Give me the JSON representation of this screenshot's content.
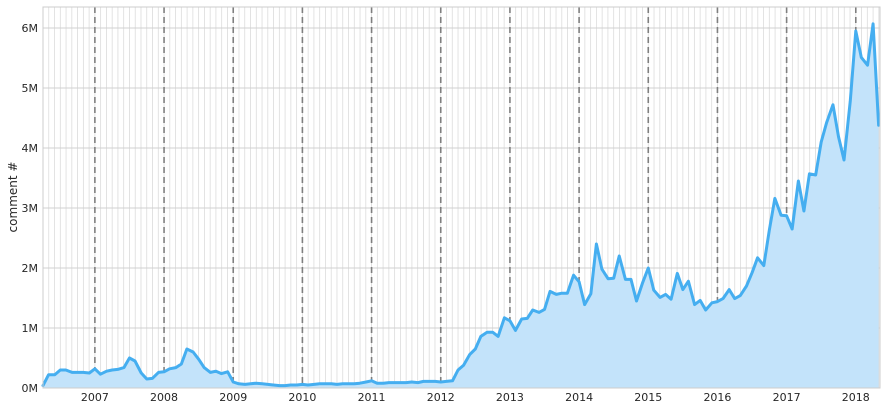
{
  "chart_data": {
    "type": "area",
    "title": "",
    "xlabel": "",
    "ylabel": "comment #",
    "xlim": [
      2006.25,
      2018.35
    ],
    "ylim": [
      0,
      6350000
    ],
    "grid": true,
    "minor_grid": "monthly",
    "year_markers": [
      2007,
      2008,
      2009,
      2010,
      2011,
      2012,
      2013,
      2014,
      2015,
      2016,
      2017,
      2018
    ],
    "x_ticks": [
      {
        "value": 2007,
        "label": "2007"
      },
      {
        "value": 2008,
        "label": "2008"
      },
      {
        "value": 2009,
        "label": "2009"
      },
      {
        "value": 2010,
        "label": "2010"
      },
      {
        "value": 2011,
        "label": "2011"
      },
      {
        "value": 2012,
        "label": "2012"
      },
      {
        "value": 2013,
        "label": "2013"
      },
      {
        "value": 2014,
        "label": "2014"
      },
      {
        "value": 2015,
        "label": "2015"
      },
      {
        "value": 2016,
        "label": "2016"
      },
      {
        "value": 2017,
        "label": "2017"
      },
      {
        "value": 2018,
        "label": "2018"
      }
    ],
    "y_ticks": [
      {
        "value": 0,
        "label": "0M"
      },
      {
        "value": 1000000,
        "label": "1M"
      },
      {
        "value": 2000000,
        "label": "2M"
      },
      {
        "value": 3000000,
        "label": "3M"
      },
      {
        "value": 4000000,
        "label": "4M"
      },
      {
        "value": 5000000,
        "label": "5M"
      },
      {
        "value": 6000000,
        "label": "6M"
      }
    ],
    "colors": {
      "line": "#45aef0",
      "fill": "#c3e3fa",
      "grid": "#d0d0d0",
      "year_marker": "#7f7f7f"
    },
    "series": [
      {
        "x": [
          2006.25,
          2006.33,
          2006.42,
          2006.5,
          2006.58,
          2006.67,
          2006.75,
          2006.83,
          2006.92,
          2007.0,
          2007.08,
          2007.17,
          2007.25,
          2007.33,
          2007.42,
          2007.5,
          2007.58,
          2007.67,
          2007.75,
          2007.83,
          2007.92,
          2008.0,
          2008.08,
          2008.17,
          2008.25,
          2008.33,
          2008.42,
          2008.5,
          2008.58,
          2008.67,
          2008.75,
          2008.83,
          2008.92,
          2009.0,
          2009.08,
          2009.17,
          2009.25,
          2009.33,
          2009.42,
          2009.5,
          2009.58,
          2009.67,
          2009.75,
          2009.83,
          2009.92,
          2010.0,
          2010.08,
          2010.17,
          2010.25,
          2010.33,
          2010.42,
          2010.5,
          2010.58,
          2010.67,
          2010.75,
          2010.83,
          2010.92,
          2011.0,
          2011.08,
          2011.17,
          2011.25,
          2011.33,
          2011.42,
          2011.5,
          2011.58,
          2011.67,
          2011.75,
          2011.83,
          2011.92,
          2012.0,
          2012.08,
          2012.17,
          2012.25,
          2012.33,
          2012.42,
          2012.5,
          2012.58,
          2012.67,
          2012.75,
          2012.83,
          2012.92,
          2013.0,
          2013.08,
          2013.17,
          2013.25,
          2013.33,
          2013.42,
          2013.5,
          2013.58,
          2013.67,
          2013.75,
          2013.83,
          2013.92,
          2014.0,
          2014.08,
          2014.17,
          2014.25,
          2014.33,
          2014.42,
          2014.5,
          2014.58,
          2014.67,
          2014.75,
          2014.83,
          2014.92,
          2015.0,
          2015.08,
          2015.17,
          2015.25,
          2015.33,
          2015.42,
          2015.5,
          2015.58,
          2015.67,
          2015.75,
          2015.83,
          2015.92,
          2016.0,
          2016.08,
          2016.17,
          2016.25,
          2016.33,
          2016.42,
          2016.5,
          2016.58,
          2016.67,
          2016.75,
          2016.83,
          2016.92,
          2017.0,
          2017.08,
          2017.17,
          2017.25,
          2017.33,
          2017.42,
          2017.5,
          2017.58,
          2017.67,
          2017.75,
          2017.83,
          2017.92,
          2018.0,
          2018.08,
          2018.17,
          2018.25,
          2018.33
        ],
        "values": [
          40000,
          220000,
          220000,
          300000,
          300000,
          260000,
          260000,
          260000,
          250000,
          320000,
          230000,
          280000,
          300000,
          310000,
          340000,
          500000,
          450000,
          250000,
          150000,
          160000,
          260000,
          270000,
          320000,
          340000,
          400000,
          650000,
          600000,
          480000,
          340000,
          260000,
          280000,
          240000,
          270000,
          100000,
          70000,
          60000,
          70000,
          80000,
          70000,
          60000,
          50000,
          40000,
          40000,
          50000,
          50000,
          60000,
          50000,
          60000,
          70000,
          70000,
          70000,
          60000,
          70000,
          70000,
          70000,
          80000,
          100000,
          120000,
          80000,
          80000,
          90000,
          90000,
          90000,
          90000,
          100000,
          90000,
          110000,
          110000,
          110000,
          100000,
          110000,
          120000,
          300000,
          380000,
          560000,
          650000,
          860000,
          930000,
          930000,
          860000,
          1170000,
          1120000,
          960000,
          1150000,
          1160000,
          1300000,
          1260000,
          1310000,
          1610000,
          1560000,
          1580000,
          1580000,
          1880000,
          1770000,
          1390000,
          1570000,
          2400000,
          1980000,
          1820000,
          1830000,
          2200000,
          1810000,
          1810000,
          1450000,
          1760000,
          2000000,
          1630000,
          1510000,
          1560000,
          1480000,
          1910000,
          1640000,
          1780000,
          1390000,
          1460000,
          1300000,
          1420000,
          1440000,
          1490000,
          1640000,
          1490000,
          1540000,
          1700000,
          1920000,
          2170000,
          2040000,
          2630000,
          3160000,
          2880000,
          2870000,
          2650000,
          3450000,
          2950000,
          3570000,
          3550000,
          4100000,
          4430000,
          4720000,
          4190000,
          3800000,
          4780000,
          5950000,
          5510000,
          5380000,
          6070000,
          4380000
        ]
      }
    ]
  }
}
